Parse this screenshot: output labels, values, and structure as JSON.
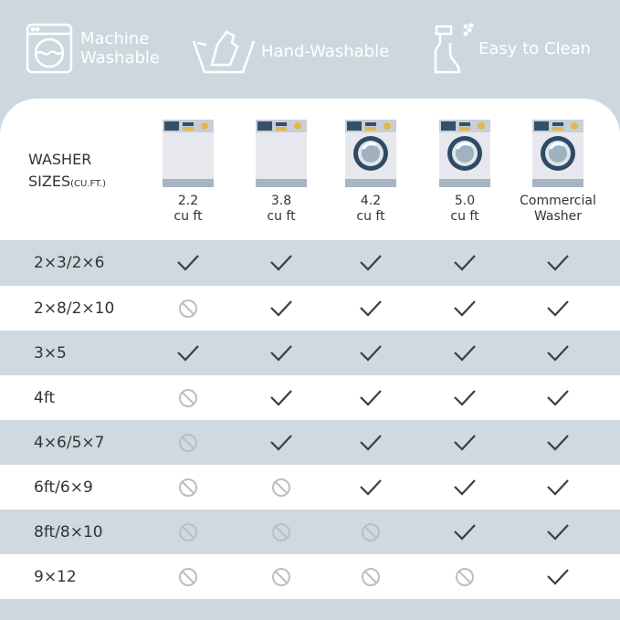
{
  "features": [
    {
      "icon": "washing-machine-icon",
      "label_lines": [
        "Machine",
        "Washable"
      ]
    },
    {
      "icon": "hand-wash-icon",
      "label_lines": [
        "Hand-Washable"
      ]
    },
    {
      "icon": "spray-bottle-icon",
      "label_lines": [
        "Easy to Clean"
      ]
    }
  ],
  "table": {
    "header_label": "WASHER",
    "header_label2": "SIZES",
    "header_unit": "(CU.FT.)",
    "columns": [
      {
        "line1": "2.2",
        "line2": "cu ft",
        "icon": "washer-icon"
      },
      {
        "line1": "3.8",
        "line2": "cu ft",
        "icon": "washer-icon"
      },
      {
        "line1": "4.2",
        "line2": "cu ft",
        "icon": "front-load-washer-icon"
      },
      {
        "line1": "5.0",
        "line2": "cu ft",
        "icon": "front-load-washer-icon"
      },
      {
        "line1": "Commercial",
        "line2": "Washer",
        "icon": "front-load-washer-icon"
      }
    ],
    "rows": [
      {
        "size": "2×3/2×6",
        "fits": [
          true,
          true,
          true,
          true,
          true
        ]
      },
      {
        "size": "2×8/2×10",
        "fits": [
          false,
          true,
          true,
          true,
          true
        ]
      },
      {
        "size": "3×5",
        "fits": [
          true,
          true,
          true,
          true,
          true
        ]
      },
      {
        "size": "4ft",
        "fits": [
          false,
          true,
          true,
          true,
          true
        ]
      },
      {
        "size": "4×6/5×7",
        "fits": [
          false,
          true,
          true,
          true,
          true
        ]
      },
      {
        "size": "6ft/6×9",
        "fits": [
          false,
          false,
          true,
          true,
          true
        ]
      },
      {
        "size": "8ft/8×10",
        "fits": [
          false,
          false,
          false,
          true,
          true
        ]
      },
      {
        "size": "9×12",
        "fits": [
          false,
          false,
          false,
          false,
          true
        ]
      }
    ]
  },
  "colors": {
    "background": "#cdd8de",
    "row_alt": "#cfd9df",
    "check": "#3a3f44",
    "no": "#b9bfc4"
  }
}
